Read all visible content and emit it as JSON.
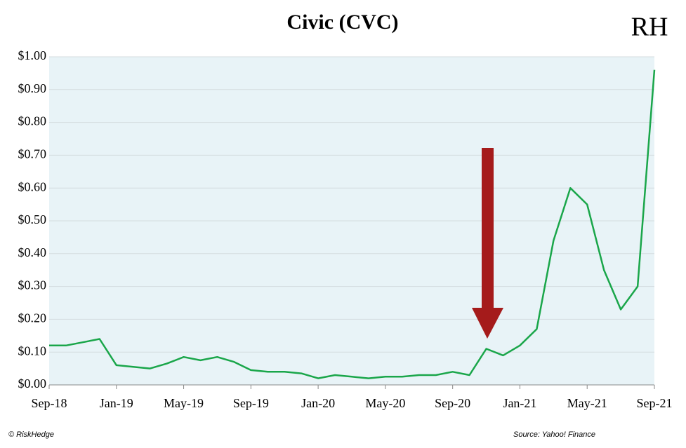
{
  "chart_data": {
    "type": "line",
    "title": "Civic (CVC)",
    "logo": "RH",
    "categories": [
      "Sep-18",
      null,
      null,
      null,
      "Jan-19",
      null,
      null,
      null,
      "May-19",
      null,
      null,
      null,
      "Sep-19",
      null,
      null,
      null,
      "Jan-20",
      null,
      null,
      null,
      "May-20",
      null,
      null,
      null,
      "Sep-20",
      null,
      null,
      null,
      "Jan-21",
      null,
      null,
      null,
      "May-21",
      null,
      null,
      null,
      "Sep-21"
    ],
    "series": [
      {
        "name": "CVC",
        "color": "#1aa64a",
        "values": [
          0.12,
          0.12,
          0.13,
          0.14,
          0.06,
          0.055,
          0.05,
          0.065,
          0.085,
          0.075,
          0.085,
          0.07,
          0.045,
          0.04,
          0.04,
          0.035,
          0.02,
          0.03,
          0.025,
          0.02,
          0.025,
          0.025,
          0.03,
          0.03,
          0.04,
          0.03,
          0.11,
          0.09,
          0.12,
          0.17,
          0.44,
          0.6,
          0.55,
          0.35,
          0.23,
          0.3,
          0.96
        ]
      }
    ],
    "ylim": [
      0,
      1
    ],
    "yticks": [
      {
        "value": 0,
        "label": "$0.00"
      },
      {
        "value": 0.1,
        "label": "$0.10"
      },
      {
        "value": 0.2,
        "label": "$0.20"
      },
      {
        "value": 0.3,
        "label": "$0.30"
      },
      {
        "value": 0.4,
        "label": "$0.40"
      },
      {
        "value": 0.5,
        "label": "$0.50"
      },
      {
        "value": 0.6,
        "label": "$0.60"
      },
      {
        "value": 0.7,
        "label": "$0.70"
      },
      {
        "value": 0.8,
        "label": "$0.80"
      },
      {
        "value": 0.9,
        "label": "$0.90"
      },
      {
        "value": 1,
        "label": "$1.00"
      }
    ],
    "grid": true,
    "copyright": "© RiskHedge",
    "source": "Source: Yahoo! Finance"
  }
}
